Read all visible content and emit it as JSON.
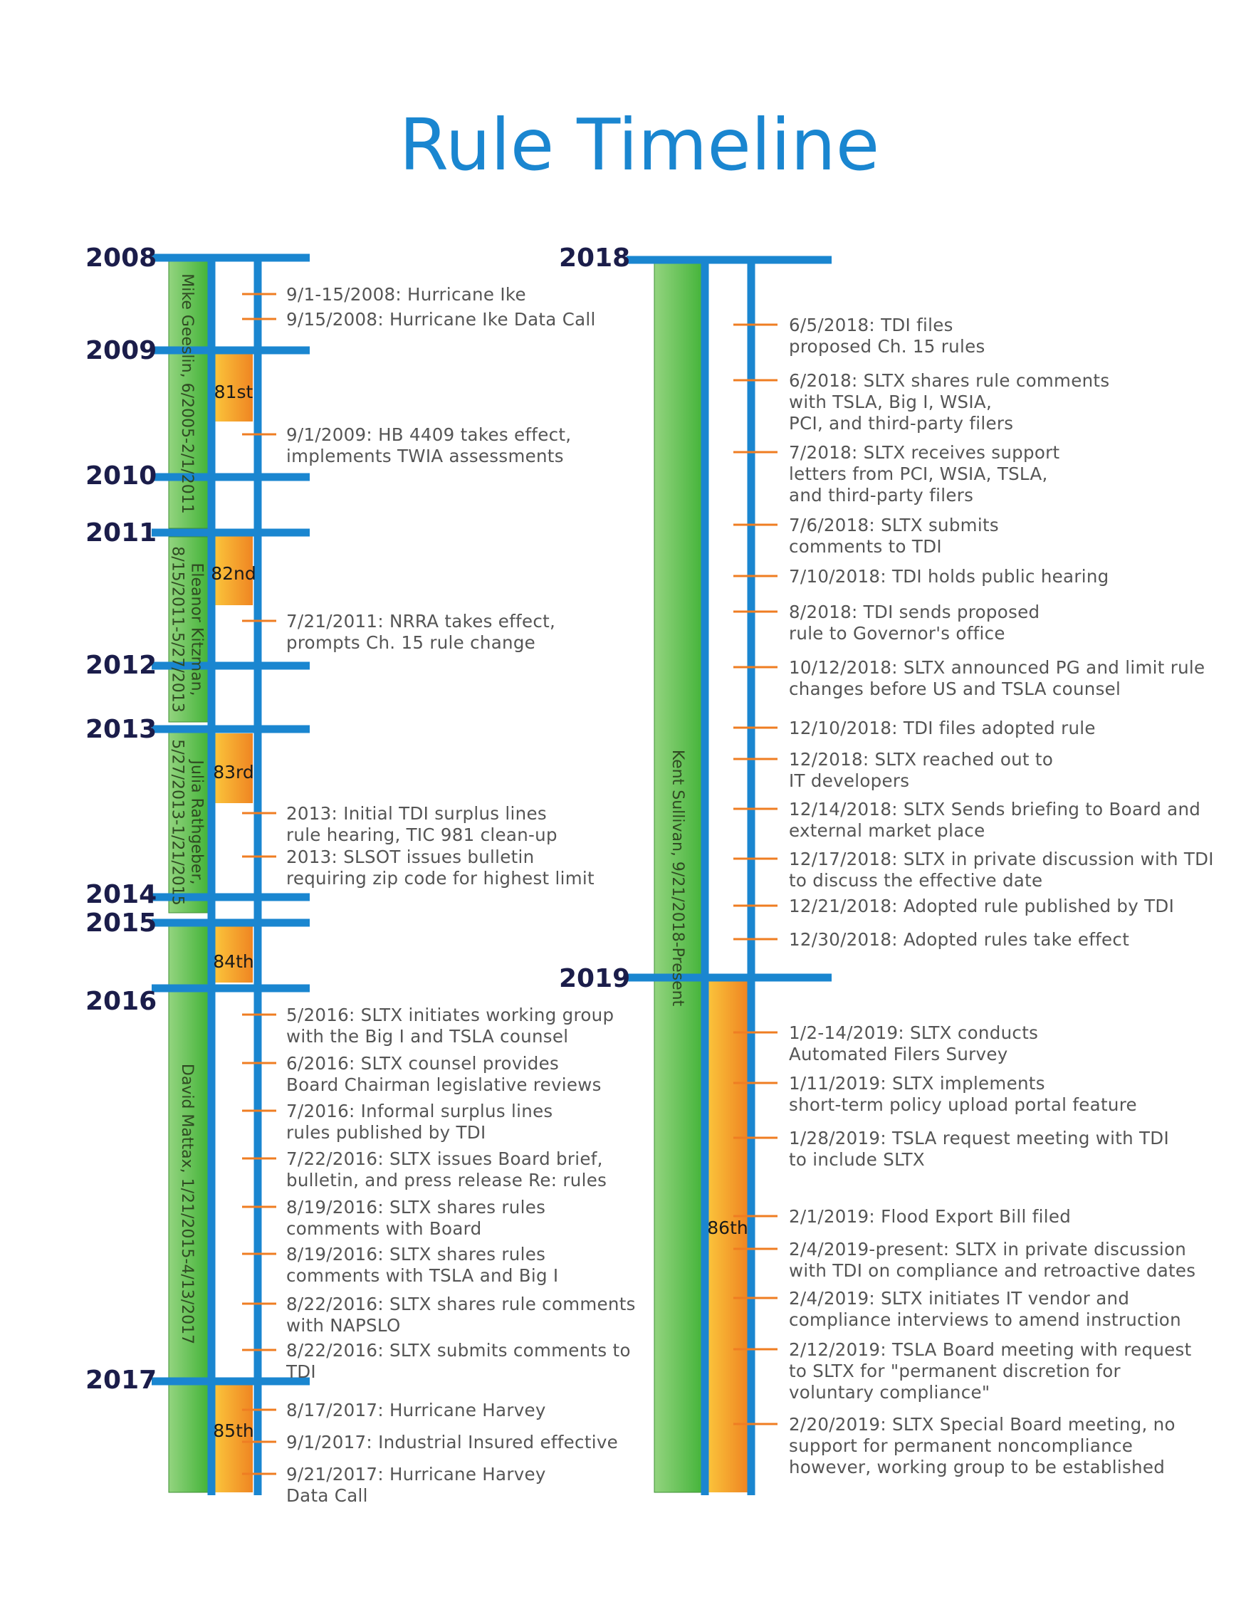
{
  "title": "Rule Timeline",
  "colors": {
    "title": "#1a86d0",
    "axis": "#1a86d0",
    "official_bar": "#5cbd48",
    "session_bar": "#f6a21d",
    "tick": "#ef7d22",
    "year_text": "#1b1d4a",
    "event_text": "#555555"
  },
  "years": [
    "2008",
    "2009",
    "2010",
    "2011",
    "2012",
    "2013",
    "2014",
    "2015",
    "2016",
    "2017",
    "2018",
    "2019"
  ],
  "sessions": [
    "81st",
    "82nd",
    "83rd",
    "84th",
    "85th",
    "86th"
  ],
  "officials": [
    "Mike Geeslin, 6/2005-2/1/2011",
    [
      "Eleanor Kitzman,",
      "8/15/2011-5/27/2013"
    ],
    [
      "Julia Rathgeber,",
      "5/27/2013-1/21/2015"
    ],
    "David Mattax, 1/21/2015-4/13/2017",
    "Kent Sullivan, 9/21/2018-Present"
  ],
  "events_left": [
    [
      "9/1-15/2008: Hurricane Ike"
    ],
    [
      "9/15/2008: Hurricane Ike Data Call"
    ],
    [
      "9/1/2009: HB 4409 takes effect,",
      "implements TWIA assessments"
    ],
    [
      "7/21/2011: NRRA takes effect,",
      "prompts Ch. 15 rule change"
    ],
    [
      "2013: Initial TDI surplus lines",
      "rule hearing, TIC 981 clean-up"
    ],
    [
      "2013: SLSOT issues bulletin",
      "requiring zip code for highest limit"
    ],
    [
      "5/2016: SLTX initiates working group",
      "with the Big I and TSLA counsel"
    ],
    [
      "6/2016: SLTX counsel provides",
      "Board Chairman legislative reviews"
    ],
    [
      "7/2016: Informal surplus lines",
      "rules published by TDI"
    ],
    [
      "7/22/2016: SLTX issues Board brief,",
      "bulletin, and press release Re: rules"
    ],
    [
      "8/19/2016: SLTX shares rules",
      "comments with Board"
    ],
    [
      "8/19/2016: SLTX shares rules",
      "comments with TSLA and Big I"
    ],
    [
      "8/22/2016: SLTX shares rule comments",
      "with NAPSLO"
    ],
    [
      "8/22/2016: SLTX submits comments to",
      "TDI"
    ],
    [
      "8/17/2017: Hurricane Harvey"
    ],
    [
      "9/1/2017: Industrial Insured effective"
    ],
    [
      "9/21/2017: Hurricane Harvey",
      "Data Call"
    ]
  ],
  "events_right": [
    [
      "6/5/2018: TDI files",
      "proposed Ch. 15 rules"
    ],
    [
      "6/2018: SLTX shares rule comments",
      "with TSLA, Big I, WSIA,",
      "PCI, and third-party filers"
    ],
    [
      "7/2018: SLTX receives support",
      "letters from PCI, WSIA, TSLA,",
      "and third-party filers"
    ],
    [
      "7/6/2018: SLTX submits",
      "comments to TDI"
    ],
    [
      "7/10/2018: TDI holds public hearing"
    ],
    [
      "8/2018: TDI sends proposed",
      "rule to Governor's office"
    ],
    [
      "10/12/2018: SLTX announced PG and limit rule",
      "changes before US and TSLA counsel"
    ],
    [
      "12/10/2018: TDI files adopted rule"
    ],
    [
      "12/2018: SLTX reached out to",
      "IT developers"
    ],
    [
      "12/14/2018: SLTX Sends briefing to Board and",
      "external market place"
    ],
    [
      "12/17/2018: SLTX in private discussion with TDI",
      "to discuss the effective date"
    ],
    [
      "12/21/2018: Adopted rule published by TDI"
    ],
    [
      "12/30/2018: Adopted rules take effect"
    ],
    [
      "1/2-14/2019: SLTX conducts",
      "Automated Filers Survey"
    ],
    [
      "1/11/2019: SLTX implements",
      "short-term policy upload portal feature"
    ],
    [
      "1/28/2019: TSLA request meeting with TDI",
      "to include SLTX"
    ],
    [
      "2/1/2019: Flood Export Bill filed"
    ],
    [
      "2/4/2019-present: SLTX in private discussion",
      "with TDI on compliance and retroactive dates"
    ],
    [
      "2/4/2019: SLTX initiates IT vendor and",
      "compliance interviews to amend instruction"
    ],
    [
      "2/12/2019: TSLA Board meeting with request",
      "to SLTX for \"permanent discretion for",
      "voluntary compliance\""
    ],
    [
      "2/20/2019: SLTX Special Board meeting, no",
      "support for permanent noncompliance",
      "however, working group to be established"
    ]
  ]
}
